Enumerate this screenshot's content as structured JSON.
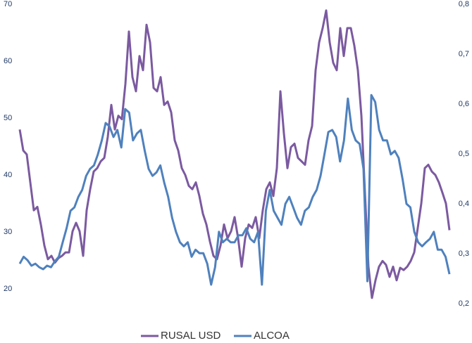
{
  "chart_data": {
    "type": "line",
    "ylim": [
      17.4,
      70
    ],
    "yticks": [
      20,
      30,
      40,
      50,
      60,
      70
    ],
    "y2lim": [
      0.2,
      0.8
    ],
    "y2ticks": [
      {
        "value": 0.2,
        "label": "0,2"
      },
      {
        "value": 0.3,
        "label": "0,3"
      },
      {
        "value": 0.4,
        "label": "0,4"
      },
      {
        "value": 0.5,
        "label": "0,5"
      },
      {
        "value": 0.6,
        "label": "0,6"
      },
      {
        "value": 0.7,
        "label": "0,7"
      },
      {
        "value": 0.8,
        "label": "0,8"
      }
    ],
    "grid": false,
    "legend": "bottom",
    "series": [
      {
        "name": "RUSAL USD",
        "color": "#7b5aa0",
        "values": [
          48.0,
          44.3,
          43.6,
          38.7,
          33.8,
          34.4,
          31.3,
          27.6,
          25.2,
          25.8,
          24.6,
          25.4,
          25.8,
          26.4,
          26.4,
          30.1,
          31.6,
          30.1,
          25.8,
          33.8,
          37.5,
          40.6,
          41.2,
          42.4,
          43.0,
          46.7,
          52.3,
          48.0,
          50.4,
          49.8,
          56.0,
          65.2,
          57.2,
          54.7,
          60.9,
          58.4,
          66.4,
          63.3,
          55.3,
          54.7,
          57.2,
          52.3,
          52.9,
          51.0,
          46.1,
          44.3,
          41.2,
          40.0,
          38.1,
          37.5,
          38.7,
          36.3,
          33.2,
          31.3,
          28.3,
          25.8,
          25.2,
          27.6,
          31.3,
          28.9,
          30.1,
          32.6,
          28.9,
          23.9,
          28.9,
          31.3,
          30.7,
          32.6,
          28.9,
          33.8,
          37.5,
          38.7,
          36.3,
          41.2,
          54.7,
          47.3,
          41.2,
          44.9,
          45.5,
          43.0,
          42.4,
          41.8,
          46.1,
          48.6,
          58.4,
          63.3,
          65.8,
          68.9,
          63.3,
          59.7,
          58.4,
          65.8,
          60.9,
          65.8,
          65.8,
          62.7,
          58.4,
          50.4,
          36.9,
          23.9,
          18.4,
          21.5,
          23.9,
          24.9,
          24.2,
          22.1,
          23.9,
          21.5,
          23.7,
          23.3,
          23.9,
          24.9,
          26.4,
          30.7,
          35.0,
          41.2,
          41.8,
          40.6,
          40.0,
          38.7,
          36.9,
          35.0,
          30.3
        ]
      },
      {
        "name": "ALCOA",
        "color": "#4f81bd",
        "axis": "y2",
        "values": [
          0.28,
          0.294,
          0.287,
          0.276,
          0.28,
          0.273,
          0.269,
          0.276,
          0.273,
          0.285,
          0.294,
          0.323,
          0.351,
          0.386,
          0.393,
          0.414,
          0.428,
          0.456,
          0.47,
          0.477,
          0.499,
          0.527,
          0.562,
          0.555,
          0.534,
          0.548,
          0.513,
          0.59,
          0.583,
          0.527,
          0.541,
          0.548,
          0.506,
          0.47,
          0.456,
          0.463,
          0.477,
          0.442,
          0.414,
          0.372,
          0.344,
          0.323,
          0.315,
          0.323,
          0.294,
          0.308,
          0.301,
          0.301,
          0.28,
          0.238,
          0.273,
          0.344,
          0.323,
          0.33,
          0.323,
          0.323,
          0.337,
          0.337,
          0.351,
          0.33,
          0.323,
          0.344,
          0.238,
          0.386,
          0.428,
          0.386,
          0.372,
          0.358,
          0.4,
          0.414,
          0.393,
          0.372,
          0.358,
          0.386,
          0.393,
          0.414,
          0.428,
          0.456,
          0.499,
          0.544,
          0.548,
          0.534,
          0.485,
          0.527,
          0.611,
          0.548,
          0.527,
          0.52,
          0.47,
          0.245,
          0.618,
          0.604,
          0.548,
          0.527,
          0.527,
          0.499,
          0.506,
          0.492,
          0.449,
          0.4,
          0.393,
          0.344,
          0.323,
          0.315,
          0.323,
          0.33,
          0.344,
          0.308,
          0.308,
          0.294,
          0.259
        ]
      }
    ]
  }
}
